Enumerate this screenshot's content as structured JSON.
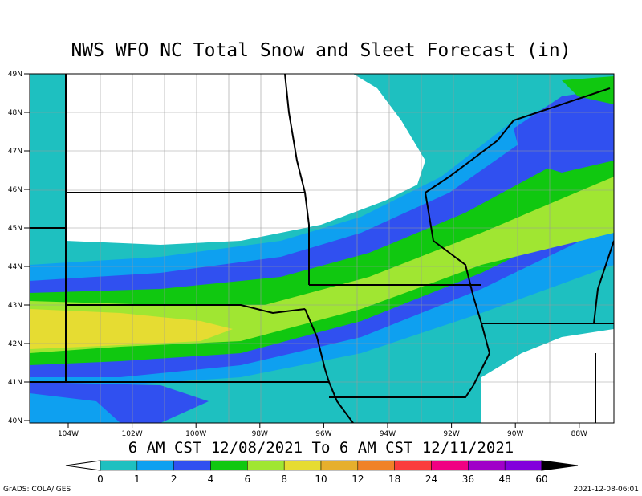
{
  "title": "NWS WFO NC Total Snow and Sleet Forecast (in)",
  "lat_labels": [
    "49N",
    "48N",
    "47N",
    "46N",
    "45N",
    "44N",
    "43N",
    "42N",
    "41N",
    "40N"
  ],
  "lon_labels": [
    "104W",
    "102W",
    "100W",
    "98W",
    "96W",
    "94W",
    "92W",
    "90W",
    "88W"
  ],
  "period": "6 AM CST 12/08/2021 To 6 AM CST 12/11/2021",
  "colorbar": {
    "levels": [
      0,
      1,
      2,
      4,
      6,
      8,
      10,
      12,
      18,
      24,
      36,
      48,
      60
    ],
    "colors": [
      "#1ec0c0",
      "#0ea0f0",
      "#3050f0",
      "#10c810",
      "#a0e632",
      "#e6dc32",
      "#e6af2d",
      "#f08228",
      "#fa3c3c",
      "#f00082",
      "#a000c8",
      "#8200dc"
    ],
    "below_color": "#ffffff",
    "above_color": "#000000"
  },
  "footer": {
    "left": "GrADS: COLA/IGES",
    "right": "2021-12-08-06:01"
  }
}
